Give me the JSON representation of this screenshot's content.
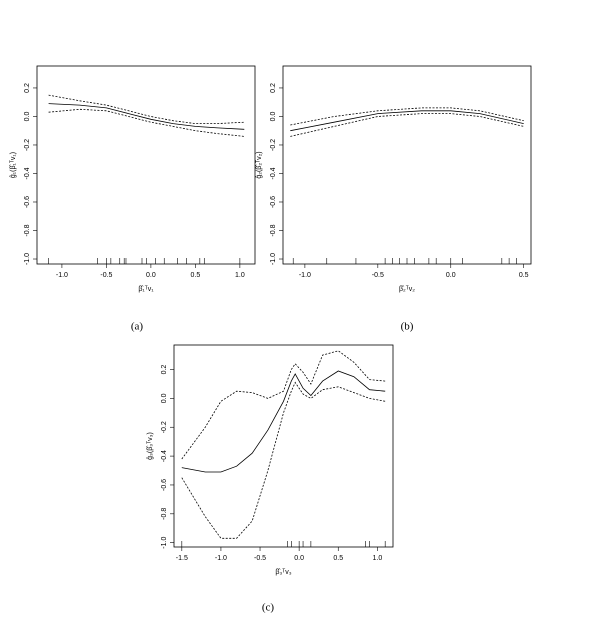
{
  "chart_data": [
    {
      "type": "line",
      "caption": "(a)",
      "x_label": "β̂₁ᵀv₁",
      "y_label": "ĝ₁(β̂₁ᵀv₁)",
      "x": [
        -1.15,
        -0.8,
        -0.5,
        -0.25,
        0.0,
        0.25,
        0.5,
        0.75,
        1.05
      ],
      "series": [
        {
          "color": "#000000",
          "dashed": false,
          "values": [
            0.09,
            0.08,
            0.06,
            0.02,
            -0.02,
            -0.05,
            -0.07,
            -0.08,
            -0.09
          ]
        },
        {
          "color": "#000000",
          "dashed": true,
          "values": [
            0.15,
            0.11,
            0.08,
            0.04,
            0.0,
            -0.03,
            -0.05,
            -0.05,
            -0.04
          ]
        },
        {
          "color": "#000000",
          "dashed": true,
          "values": [
            0.03,
            0.05,
            0.04,
            0.0,
            -0.04,
            -0.07,
            -0.1,
            -0.12,
            -0.14
          ]
        }
      ],
      "rug": [
        -1.15,
        -0.6,
        -0.5,
        -0.45,
        -0.35,
        -0.3,
        -0.28,
        -0.1,
        -0.05,
        0.05,
        0.15,
        0.3,
        0.4,
        0.55,
        0.6,
        1.0
      ],
      "xlim": [
        -1.28,
        1.17
      ],
      "ylim": [
        -1.035,
        0.354
      ],
      "xticks": [
        {
          "value": -1,
          "label": "-1.0"
        },
        -0.5,
        {
          "value": 0,
          "label": "0.0"
        },
        0.5,
        {
          "value": 1,
          "label": "1.0"
        }
      ],
      "yticks": [
        {
          "value": -1,
          "label": "-1.0"
        },
        -0.8,
        -0.6,
        -0.4,
        -0.2,
        {
          "value": 0,
          "label": "0.0"
        },
        0.2
      ]
    },
    {
      "type": "line",
      "caption": "(b)",
      "x_label": "β̂₂ᵀv₂",
      "y_label": "ĝ₂(β̂₂ᵀv₂)",
      "x": [
        -1.1,
        -0.8,
        -0.5,
        -0.2,
        0.0,
        0.2,
        0.5
      ],
      "series": [
        {
          "color": "#000000",
          "dashed": false,
          "values": [
            -0.1,
            -0.04,
            0.02,
            0.04,
            0.04,
            0.02,
            -0.05
          ]
        },
        {
          "color": "#000000",
          "dashed": true,
          "values": [
            -0.06,
            0.0,
            0.04,
            0.06,
            0.06,
            0.04,
            -0.03
          ]
        },
        {
          "color": "#000000",
          "dashed": true,
          "values": [
            -0.14,
            -0.07,
            0.0,
            0.02,
            0.02,
            0.0,
            -0.07
          ]
        }
      ],
      "rug": [
        -1.08,
        -0.85,
        -0.65,
        -0.45,
        -0.4,
        -0.35,
        -0.3,
        -0.25,
        -0.15,
        -0.1,
        0.0,
        0.08,
        0.35,
        0.4,
        0.45
      ],
      "xlim": [
        -1.15,
        0.55
      ],
      "ylim": [
        -1.035,
        0.354
      ],
      "xticks": [
        {
          "value": -1,
          "label": "-1.0"
        },
        -0.5,
        {
          "value": 0,
          "label": "0.0"
        },
        0.5
      ],
      "yticks": [
        {
          "value": -1,
          "label": "-1.0"
        },
        -0.8,
        -0.6,
        -0.4,
        -0.2,
        {
          "value": 0,
          "label": "0.0"
        },
        0.2
      ]
    },
    {
      "type": "line",
      "caption": "(c)",
      "x_label": "β̂₃ᵀv₃",
      "y_label": "ĝ₃(β̂₃ᵀv₃)",
      "x": [
        -1.5,
        -1.2,
        -1.0,
        -0.8,
        -0.6,
        -0.4,
        -0.2,
        -0.1,
        -0.05,
        0.05,
        0.15,
        0.3,
        0.5,
        0.7,
        0.9,
        1.1
      ],
      "series": [
        {
          "color": "#000000",
          "dashed": false,
          "values": [
            -0.48,
            -0.51,
            -0.51,
            -0.47,
            -0.38,
            -0.22,
            -0.02,
            0.12,
            0.17,
            0.07,
            0.02,
            0.12,
            0.19,
            0.15,
            0.06,
            0.05
          ]
        },
        {
          "color": "#000000",
          "dashed": true,
          "values": [
            -0.42,
            -0.2,
            -0.02,
            0.05,
            0.04,
            0.0,
            0.05,
            0.2,
            0.24,
            0.18,
            0.1,
            0.3,
            0.33,
            0.25,
            0.13,
            0.12
          ]
        },
        {
          "color": "#000000",
          "dashed": true,
          "values": [
            -0.55,
            -0.82,
            -0.97,
            -0.97,
            -0.85,
            -0.5,
            -0.1,
            0.05,
            0.11,
            0.03,
            0.0,
            0.06,
            0.08,
            0.04,
            0.0,
            -0.02
          ]
        }
      ],
      "rug": [
        -1.5,
        -0.15,
        -0.1,
        0.0,
        0.05,
        0.15,
        0.85,
        0.9,
        1.1
      ],
      "xlim": [
        -1.6,
        1.2
      ],
      "ylim": [
        -1.03,
        0.37
      ],
      "xticks": [
        -1.5,
        {
          "value": -1,
          "label": "-1.0"
        },
        -0.5,
        {
          "value": 0,
          "label": "0.0"
        },
        0.5,
        {
          "value": 1,
          "label": "1.0"
        }
      ],
      "yticks": [
        {
          "value": -1,
          "label": "-1.0"
        },
        -0.8,
        -0.6,
        -0.4,
        -0.2,
        {
          "value": 0,
          "label": "0.0"
        },
        0.2
      ]
    }
  ]
}
